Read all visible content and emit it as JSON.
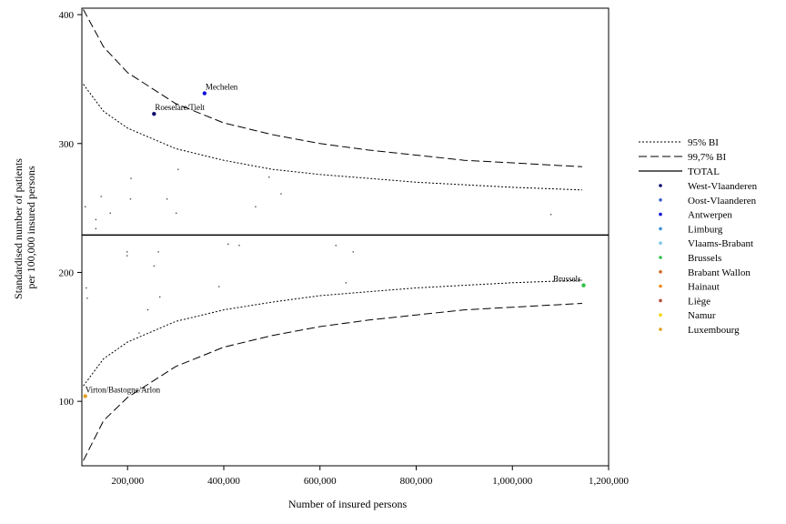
{
  "chart_data": {
    "type": "scatter",
    "xlabel": "Number of insured persons",
    "ylabel_lines": [
      "Standardised number of patients",
      "per 100,000 insured persons"
    ],
    "xlim": [
      105000,
      1200000
    ],
    "ylim": [
      50,
      405
    ],
    "x_ticks": [
      200000,
      400000,
      600000,
      800000,
      1000000,
      1200000
    ],
    "x_tick_labels": [
      "200,000",
      "400,000",
      "600,000",
      "800,000",
      "1,000,000",
      "1,200,000"
    ],
    "y_ticks": [
      100,
      200,
      300,
      400
    ],
    "y_tick_labels": [
      "100",
      "200",
      "300",
      "400"
    ],
    "total": 229,
    "grid": false,
    "legend_position": "right",
    "legend": {
      "ci95": "95% BI",
      "ci997": "99,7% BI",
      "total": "TOTAL",
      "provinces": [
        {
          "name": "West-Vlaanderen",
          "color": "#0a0a6e"
        },
        {
          "name": "Oost-Vlaanderen",
          "color": "#3a5fcd"
        },
        {
          "name": "Antwerpen",
          "color": "#1010d8"
        },
        {
          "name": "Limburg",
          "color": "#3b8fd4"
        },
        {
          "name": "Vlaams-Brabant",
          "color": "#7fc8e8"
        },
        {
          "name": "Brussels",
          "color": "#33c04a"
        },
        {
          "name": "Brabant Wallon",
          "color": "#d2691e"
        },
        {
          "name": "Hainaut",
          "color": "#f28c28"
        },
        {
          "name": "Liège",
          "color": "#b34a3a"
        },
        {
          "name": "Namur",
          "color": "#f5d400"
        },
        {
          "name": "Luxembourg",
          "color": "#e0a020"
        }
      ]
    },
    "ci_curves": {
      "ci95_upper": [
        [
          108000,
          346
        ],
        [
          150000,
          325
        ],
        [
          200000,
          312
        ],
        [
          300000,
          296
        ],
        [
          400000,
          287
        ],
        [
          500000,
          280
        ],
        [
          600000,
          276
        ],
        [
          700000,
          273
        ],
        [
          800000,
          270
        ],
        [
          900000,
          268
        ],
        [
          1000000,
          266
        ],
        [
          1145000,
          264
        ]
      ],
      "ci95_lower": [
        [
          108000,
          112
        ],
        [
          150000,
          133
        ],
        [
          200000,
          146
        ],
        [
          300000,
          162
        ],
        [
          400000,
          171
        ],
        [
          500000,
          177
        ],
        [
          600000,
          182
        ],
        [
          700000,
          185
        ],
        [
          800000,
          188
        ],
        [
          900000,
          190
        ],
        [
          1000000,
          192
        ],
        [
          1145000,
          194
        ]
      ],
      "ci997_upper": [
        [
          108000,
          404
        ],
        [
          150000,
          375
        ],
        [
          200000,
          355
        ],
        [
          300000,
          331
        ],
        [
          400000,
          316
        ],
        [
          500000,
          307
        ],
        [
          600000,
          300
        ],
        [
          700000,
          295
        ],
        [
          800000,
          291
        ],
        [
          900000,
          287
        ],
        [
          1000000,
          285
        ],
        [
          1145000,
          282
        ]
      ],
      "ci997_lower": [
        [
          108000,
          54
        ],
        [
          150000,
          85
        ],
        [
          200000,
          103
        ],
        [
          300000,
          127
        ],
        [
          400000,
          142
        ],
        [
          500000,
          151
        ],
        [
          600000,
          158
        ],
        [
          700000,
          163
        ],
        [
          800000,
          167
        ],
        [
          900000,
          171
        ],
        [
          1000000,
          173
        ],
        [
          1145000,
          176
        ]
      ]
    },
    "points": [
      {
        "x": 360000,
        "y": 339,
        "province": "Antwerpen",
        "label": "Mechelen"
      },
      {
        "x": 255000,
        "y": 323,
        "province": "West-Vlaanderen",
        "label": "Roeselare/Tielt"
      },
      {
        "x": 1148000,
        "y": 190,
        "province": "Brussels",
        "label": "Brussels"
      },
      {
        "x": 112000,
        "y": 104,
        "province": "Luxembourg",
        "label": "Virton/Bastogne/Arlon"
      },
      {
        "x": 305000,
        "y": 280
      },
      {
        "x": 494000,
        "y": 274
      },
      {
        "x": 207000,
        "y": 273
      },
      {
        "x": 145000,
        "y": 259
      },
      {
        "x": 519000,
        "y": 261
      },
      {
        "x": 206000,
        "y": 257
      },
      {
        "x": 282000,
        "y": 257
      },
      {
        "x": 112000,
        "y": 251
      },
      {
        "x": 466000,
        "y": 251
      },
      {
        "x": 164000,
        "y": 246
      },
      {
        "x": 301000,
        "y": 246
      },
      {
        "x": 1080000,
        "y": 245
      },
      {
        "x": 134000,
        "y": 241
      },
      {
        "x": 134000,
        "y": 234
      },
      {
        "x": 409000,
        "y": 222
      },
      {
        "x": 432000,
        "y": 221
      },
      {
        "x": 633000,
        "y": 221
      },
      {
        "x": 199000,
        "y": 216
      },
      {
        "x": 264000,
        "y": 216
      },
      {
        "x": 669000,
        "y": 216
      },
      {
        "x": 199000,
        "y": 213
      },
      {
        "x": 255000,
        "y": 205
      },
      {
        "x": 114000,
        "y": 188
      },
      {
        "x": 390000,
        "y": 189
      },
      {
        "x": 654000,
        "y": 192
      },
      {
        "x": 116000,
        "y": 180
      },
      {
        "x": 267000,
        "y": 181
      },
      {
        "x": 242000,
        "y": 171
      },
      {
        "x": 224000,
        "y": 153
      }
    ]
  }
}
